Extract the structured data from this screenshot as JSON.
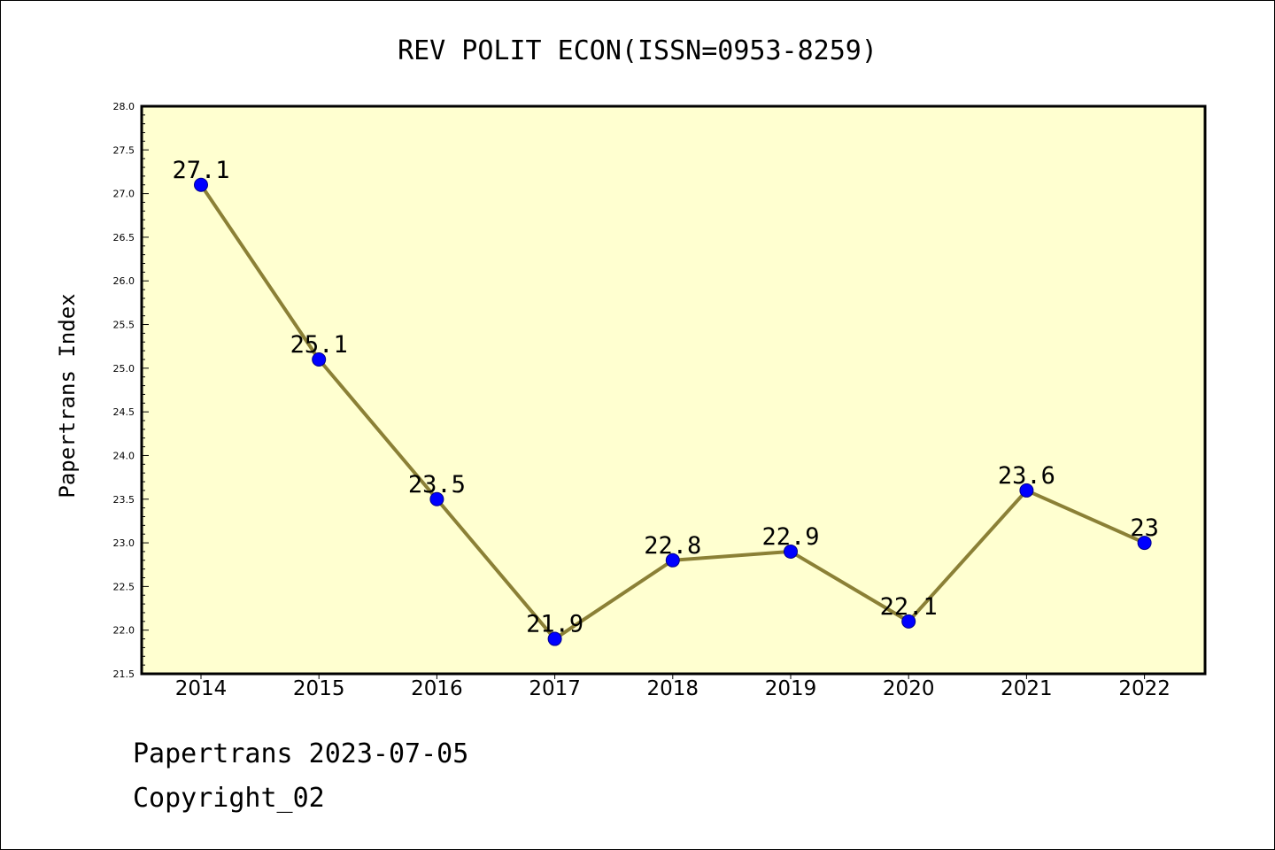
{
  "chart_data": {
    "type": "line",
    "title": "REV POLIT ECON(ISSN=0953-8259)",
    "ylabel": "Papertrans Index",
    "xlabel": "",
    "x": [
      "2014",
      "2015",
      "2016",
      "2017",
      "2018",
      "2019",
      "2020",
      "2021",
      "2022"
    ],
    "series": [
      {
        "values": [
          27.1,
          25.1,
          23.5,
          21.9,
          22.8,
          22.9,
          22.1,
          23.6,
          23.0
        ],
        "labels": [
          "27.1",
          "25.1",
          "23.5",
          "21.9",
          "22.8",
          "22.9",
          "22.1",
          "23.6",
          "23"
        ]
      }
    ],
    "ylim": [
      21.5,
      28.0
    ],
    "yticks": [
      "21.5",
      "22.0",
      "22.5",
      "23.0",
      "23.5",
      "24.0",
      "24.5",
      "25.0",
      "25.5",
      "26.0",
      "26.5",
      "27.0",
      "27.5",
      "28.0"
    ],
    "grid": false,
    "legend": "none",
    "colors": {
      "plot_background": "#ffffd0",
      "line": "#8b8036",
      "marker": "#0000ff",
      "marker_edge": "#00008b"
    }
  },
  "footer": {
    "line1": "Papertrans 2023-07-05",
    "line2": "Copyright_02"
  }
}
